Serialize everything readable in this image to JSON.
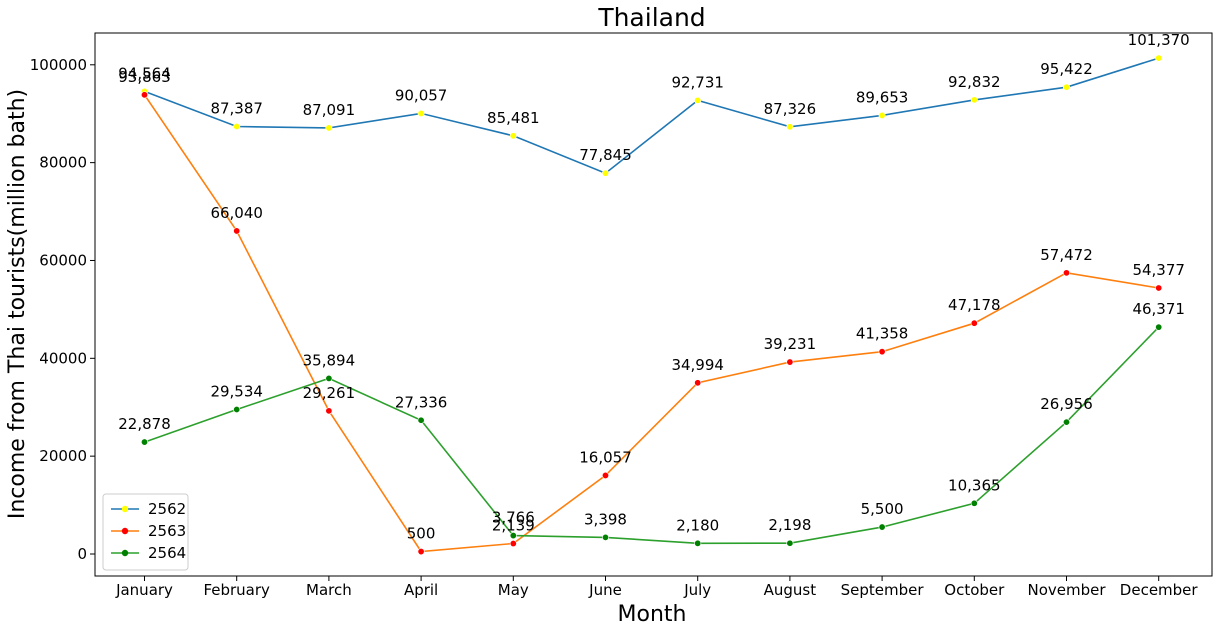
{
  "chart_data": {
    "type": "line",
    "title": "Thailand",
    "xlabel": "Month",
    "ylabel": "Income from Thai tourists(million bath)",
    "categories": [
      "January",
      "February",
      "March",
      "April",
      "May",
      "June",
      "July",
      "August",
      "September",
      "October",
      "November",
      "December"
    ],
    "ylim": [
      -4500,
      106500
    ],
    "yticks": [
      0,
      20000,
      40000,
      60000,
      80000,
      100000
    ],
    "grid": false,
    "legend_position": "lower-left",
    "series": [
      {
        "name": "2562",
        "line_color": "#1f77b4",
        "marker_color": "#ffff00",
        "values": [
          94564,
          87387,
          87091,
          90057,
          85481,
          77845,
          92731,
          87326,
          89653,
          92832,
          95422,
          101370
        ],
        "value_labels": [
          "94,564",
          "87,387",
          "87,091",
          "90,057",
          "85,481",
          "77,845",
          "92,731",
          "87,326",
          "89,653",
          "92,832",
          "95,422",
          "101,370"
        ]
      },
      {
        "name": "2563",
        "line_color": "#ff7f0e",
        "marker_color": "#ff0000",
        "values": [
          93863,
          66040,
          29261,
          500,
          2139,
          16057,
          34994,
          39231,
          41358,
          47178,
          57472,
          54377
        ],
        "value_labels": [
          "93,863",
          "66,040",
          "29,261",
          "500",
          "2,139",
          "16,057",
          "34,994",
          "39,231",
          "41,358",
          "47,178",
          "57,472",
          "54,377"
        ]
      },
      {
        "name": "2564",
        "line_color": "#2ca02c",
        "marker_color": "#008000",
        "values": [
          22878,
          29534,
          35894,
          27336,
          3766,
          3398,
          2180,
          2198,
          5500,
          10365,
          26956,
          46371
        ],
        "value_labels": [
          "22,878",
          "29,534",
          "35,894",
          "27,336",
          "3,766",
          "3,398",
          "2,180",
          "2,198",
          "5,500",
          "10,365",
          "26,956",
          "46,371"
        ]
      }
    ]
  }
}
